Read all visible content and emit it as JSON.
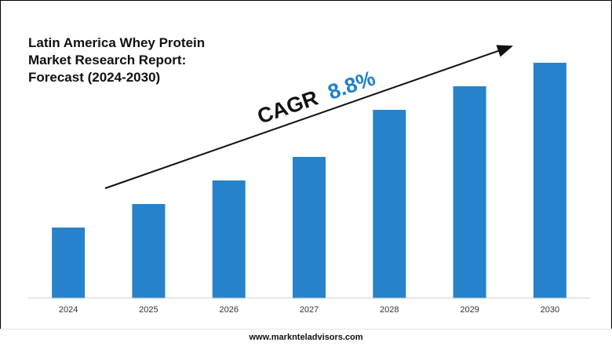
{
  "title_lines": [
    "Latin America Whey Protein",
    "Market Research Report:",
    "Forecast (2024-2030)"
  ],
  "cagr": {
    "label": "CAGR",
    "value": "8.8%"
  },
  "footer": {
    "website": "www.marknteladvisors.com"
  },
  "colors": {
    "bar": "#2782cc",
    "cagr_value": "#1f7fd0",
    "text": "#111111",
    "axis": "#cfcfcf"
  },
  "chart_data": {
    "type": "bar",
    "title": "Latin America Whey Protein Market Research Report: Forecast (2024-2030)",
    "categories": [
      "2024",
      "2025",
      "2026",
      "2027",
      "2028",
      "2029",
      "2030"
    ],
    "values": [
      30,
      40,
      50,
      60,
      80,
      90,
      100
    ],
    "ylim": [
      0,
      100
    ],
    "y_axis_visible": false,
    "grid": false,
    "annotation": "CAGR 8.8%"
  }
}
